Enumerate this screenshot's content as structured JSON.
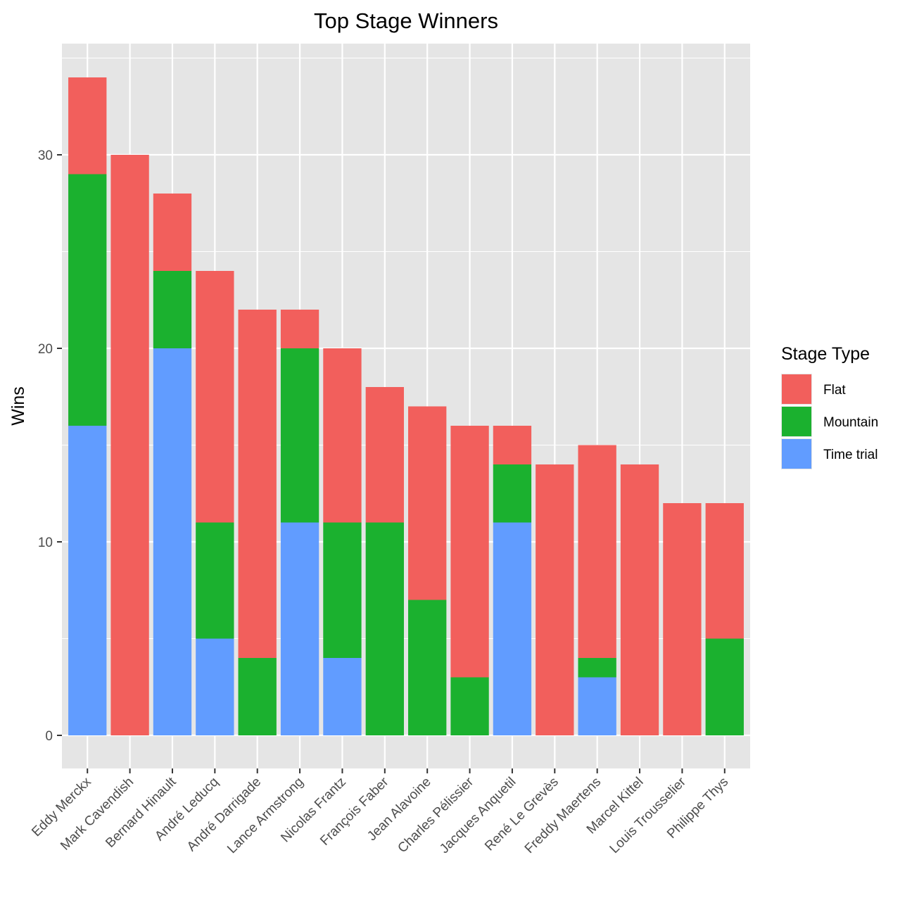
{
  "chart_data": {
    "type": "bar",
    "stacked": true,
    "title": "Top Stage Winners",
    "xlabel": "",
    "ylabel": "Wins",
    "ylim": [
      0,
      35
    ],
    "yticks": [
      0,
      10,
      20,
      30
    ],
    "grid": true,
    "legend": {
      "title": "Stage Type",
      "position": "right"
    },
    "categories": [
      "Eddy Merckx",
      "Mark Cavendish",
      "Bernard Hinault",
      "André Leducq",
      "André Darrigade",
      "Lance Armstrong",
      "Nicolas Frantz",
      "François Faber",
      "Jean Alavoine",
      "Charles Pélissier",
      "Jacques Anquetil",
      "René Le Grevès",
      "Freddy Maertens",
      "Marcel Kittel",
      "Louis Trousselier",
      "Philippe Thys"
    ],
    "series": [
      {
        "name": "Time trial",
        "color": "#619CFF",
        "values": [
          16,
          0,
          20,
          5,
          0,
          11,
          4,
          0,
          0,
          0,
          11,
          0,
          3,
          0,
          0,
          0
        ]
      },
      {
        "name": "Mountain",
        "color": "#1BB12F",
        "values": [
          13,
          0,
          4,
          6,
          4,
          9,
          7,
          11,
          7,
          3,
          3,
          0,
          1,
          0,
          0,
          5
        ]
      },
      {
        "name": "Flat",
        "color": "#F25F5C",
        "values": [
          5,
          30,
          4,
          13,
          18,
          2,
          9,
          7,
          10,
          13,
          2,
          14,
          11,
          14,
          12,
          7
        ]
      }
    ],
    "legend_order": [
      "Flat",
      "Mountain",
      "Time trial"
    ]
  },
  "colors": {
    "panel_bg": "#E5E5E5",
    "grid": "#FFFFFF",
    "tick": "#333333"
  }
}
